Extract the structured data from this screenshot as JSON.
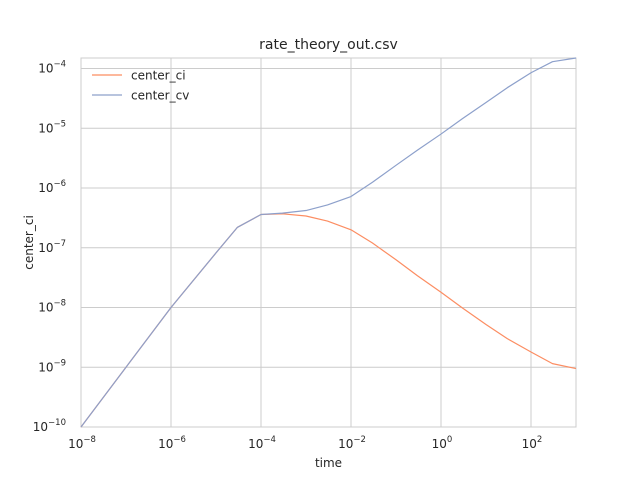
{
  "chart_data": {
    "type": "line",
    "title": "rate_theory_out.csv",
    "xlabel": "time",
    "ylabel": "center_ci",
    "xscale": "log",
    "yscale": "log",
    "xlim": [
      1e-08,
      1000
    ],
    "ylim": [
      1e-10,
      0.00015
    ],
    "grid": true,
    "legend_position": "top-left",
    "x_ticks": [
      {
        "base": "10",
        "exp": "−8"
      },
      {
        "base": "10",
        "exp": "−6"
      },
      {
        "base": "10",
        "exp": "−4"
      },
      {
        "base": "10",
        "exp": "−2"
      },
      {
        "base": "10",
        "exp": "0"
      },
      {
        "base": "10",
        "exp": "2"
      }
    ],
    "y_ticks": [
      {
        "base": "10",
        "exp": "−10"
      },
      {
        "base": "10",
        "exp": "−9"
      },
      {
        "base": "10",
        "exp": "−8"
      },
      {
        "base": "10",
        "exp": "−7"
      },
      {
        "base": "10",
        "exp": "−6"
      },
      {
        "base": "10",
        "exp": "−5"
      },
      {
        "base": "10",
        "exp": "−4"
      }
    ],
    "x": [
      1e-08,
      1e-07,
      1e-06,
      1e-05,
      3e-05,
      0.0001,
      0.0003,
      0.001,
      0.003,
      0.01,
      0.03,
      0.1,
      0.3,
      1,
      3,
      10,
      30,
      100,
      300,
      1000
    ],
    "series": [
      {
        "name": "center_ci",
        "color": "#fc8d62",
        "values": [
          1e-10,
          1e-09,
          1e-08,
          8.2e-08,
          2.2e-07,
          3.6e-07,
          3.7e-07,
          3.4e-07,
          2.8e-07,
          2e-07,
          1.2e-07,
          6.3e-08,
          3.4e-08,
          1.8e-08,
          9.8e-09,
          5.2e-09,
          3e-09,
          1.8e-09,
          1.15e-09,
          9.5e-10
        ]
      },
      {
        "name": "center_cv",
        "color": "#8da0cb",
        "values": [
          1e-10,
          1e-09,
          1e-08,
          8.2e-08,
          2.2e-07,
          3.6e-07,
          3.8e-07,
          4.2e-07,
          5.2e-07,
          7.2e-07,
          1.25e-06,
          2.4e-06,
          4.3e-06,
          8e-06,
          1.45e-05,
          2.7e-05,
          4.8e-05,
          8.5e-05,
          0.00013,
          0.00015
        ]
      }
    ]
  }
}
